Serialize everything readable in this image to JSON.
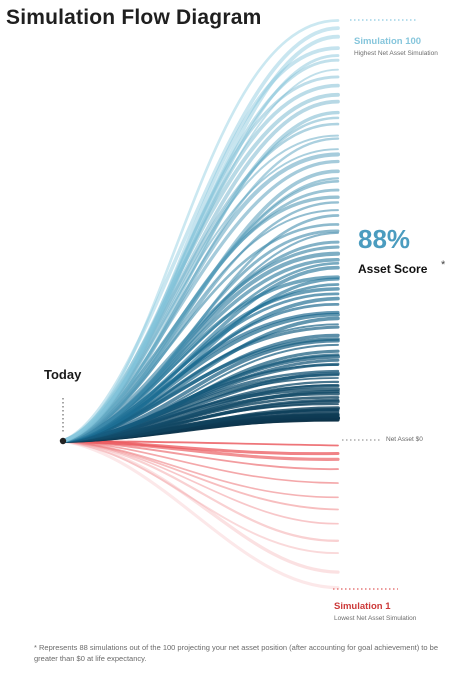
{
  "title": "Simulation Flow Diagram",
  "colors": {
    "positive": "#1a6b92",
    "positive_light": "#8ccbe0",
    "positive_dark": "#0b2f45",
    "negative": "#e8474c",
    "negative_light": "#f3a0a3",
    "origin": "#222222",
    "dots_top": "#9fd3e6",
    "dots_bottom": "#e57a7a",
    "dots_baseline": "#9a9a9a"
  },
  "origin_label": "Today",
  "top_simulation": {
    "title": "Simulation 100",
    "subtitle": "Highest Net Asset Simulation"
  },
  "bottom_simulation": {
    "title": "Simulation 1",
    "subtitle": "Lowest Net Asset Simulation"
  },
  "score": {
    "value": "88%",
    "label": "Asset Score",
    "asterisk": "*"
  },
  "baseline_label": "Net Asset $0",
  "simulations": {
    "total": 100,
    "above_zero": 88,
    "below_zero": 12
  },
  "footnote": "* Represents 88 simulations out of the 100 projecting your net asset position (after accounting for goal achievement) to be greater than $0 at life expectancy."
}
